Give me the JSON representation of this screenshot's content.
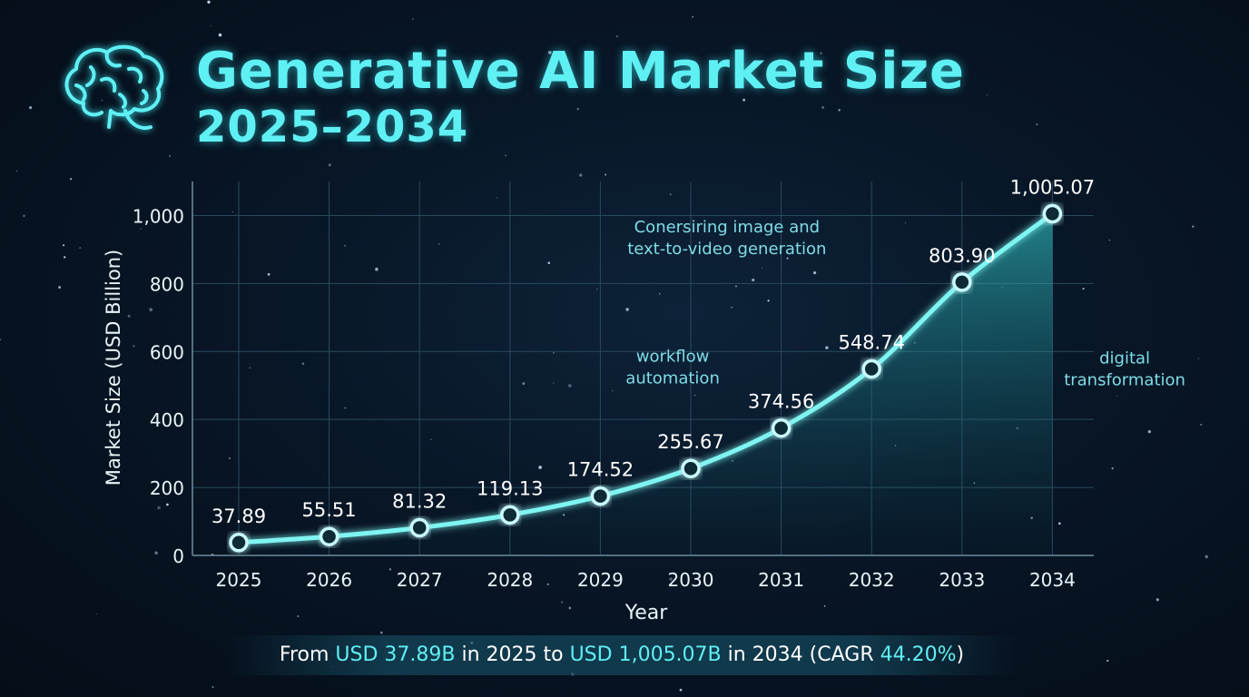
{
  "header": {
    "title": "Generative AI Market Size",
    "subtitle": "2025–2034"
  },
  "chart_data": {
    "type": "area",
    "title": "Generative AI Market Size 2025–2034",
    "xlabel": "Year",
    "ylabel": "Market Size (USD Billion)",
    "ylim": [
      0,
      1100
    ],
    "y_ticks": [
      0,
      200,
      400,
      600,
      800,
      1000
    ],
    "y_tick_labels": [
      "0",
      "200",
      "400",
      "600",
      "800",
      "1,000"
    ],
    "grid": true,
    "categories": [
      "2025",
      "2026",
      "2027",
      "2028",
      "2029",
      "2030",
      "2031",
      "2032",
      "2033",
      "2034"
    ],
    "series": [
      {
        "name": "Market Size",
        "values": [
          37.89,
          55.51,
          81.32,
          119.13,
          174.52,
          255.67,
          374.56,
          548.74,
          803.9,
          1005.07
        ],
        "labels": [
          "37.89",
          "55.51",
          "81.32",
          "119.13",
          "174.52",
          "255.67",
          "374.56",
          "548.74",
          "803.90",
          "1,005.07"
        ]
      }
    ],
    "annotations": [
      {
        "lines": [
          "Conersiring image and",
          "text-to-video generation"
        ],
        "x": "2030.4",
        "y": 950
      },
      {
        "lines": [
          "workflow",
          "automation"
        ],
        "x": "2029.8",
        "y": 570
      },
      {
        "lines": [
          "digital",
          "transformation"
        ],
        "x": "2034.8",
        "y": 565
      }
    ]
  },
  "footer": {
    "p1": "From ",
    "h1": "USD 37.89B",
    "p2": " in 2025 to ",
    "h2": "USD 1,005.07B",
    "p3": " in 2034 (CAGR ",
    "h3": "44.20%",
    "p4": ")"
  },
  "colors": {
    "accent": "#5ff0f4",
    "line": "#7ff5f2",
    "grid": "#2a4a5e",
    "text": "#e8f4f8"
  }
}
